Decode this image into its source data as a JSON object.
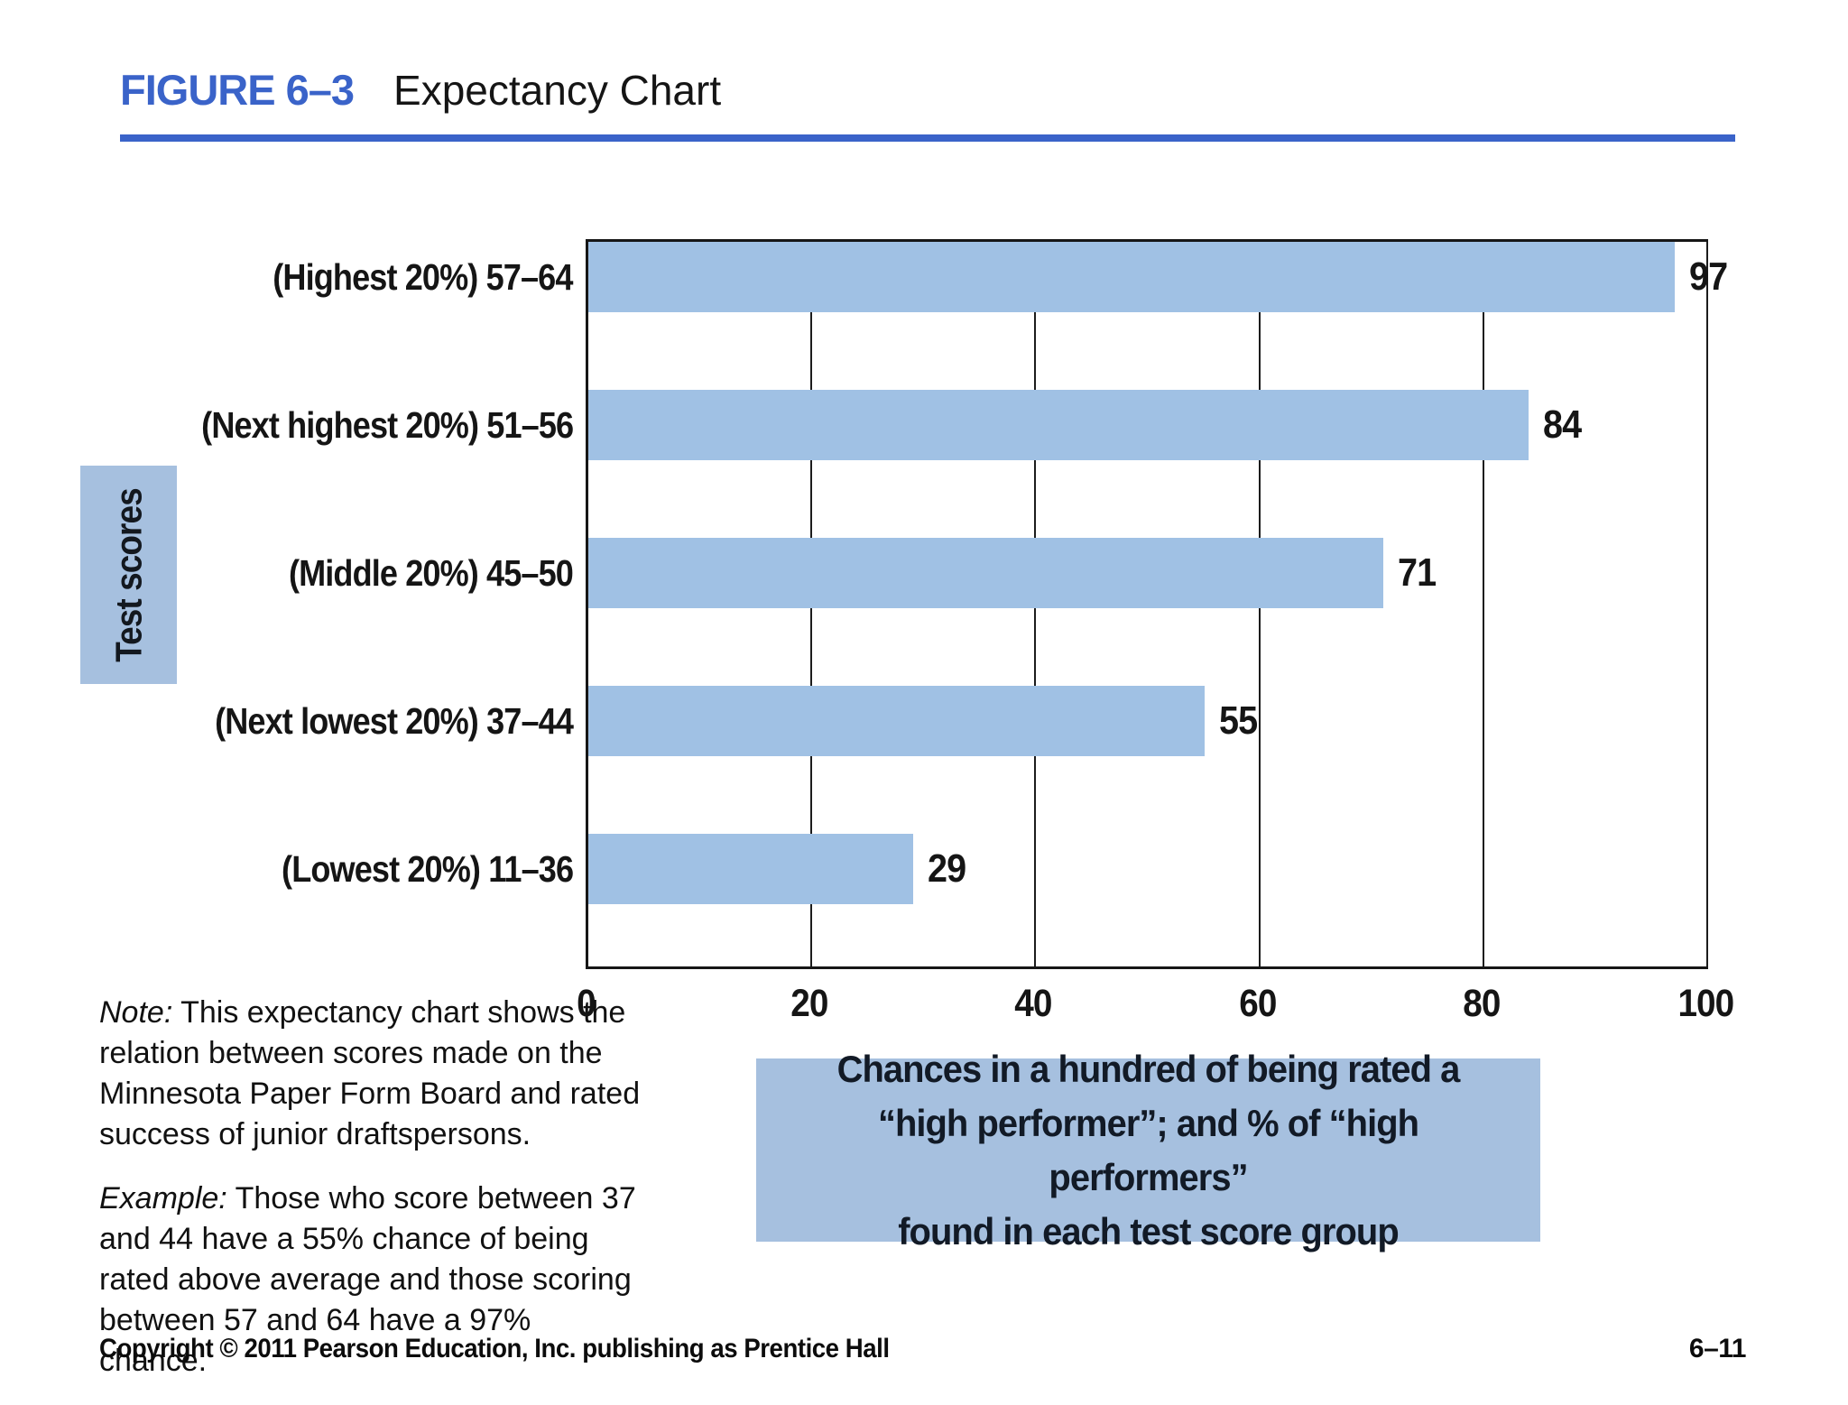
{
  "header": {
    "figure_label": "FIGURE 6–3",
    "title": "Expectancy Chart"
  },
  "chart_data": {
    "type": "bar",
    "orientation": "horizontal",
    "categories": [
      "(Highest 20%) 57–64",
      "(Next highest 20%) 51–56",
      "(Middle 20%) 45–50",
      "(Next lowest 20%) 37–44",
      "(Lowest 20%) 11–36"
    ],
    "values": [
      97,
      84,
      71,
      55,
      29
    ],
    "ylabel": "Test scores",
    "xlabel": "",
    "x_ticks": [
      0,
      20,
      40,
      60,
      80,
      100
    ],
    "xlim": [
      0,
      100
    ],
    "grid": "vertical-lines-on",
    "caption": "Chances in a hundred of being rated a\n“high performer”; and % of “high performers”\nfound in each test score group"
  },
  "note": {
    "lead": "Note:",
    "text": " This expectancy chart shows the\nrelation between scores made on the\nMinnesota Paper Form Board and rated\nsuccess of junior draftspersons."
  },
  "example": {
    "lead": "Example:",
    "text": " Those who score between 37\nand 44 have a 55% chance of being\nrated above average and those scoring\nbetween 57 and 64 have a 97% chance."
  },
  "footer": {
    "copyright": "Copyright © 2011 Pearson Education, Inc. publishing as Prentice Hall",
    "page": "6–11"
  },
  "colors": {
    "accent_blue": "#3A63C9",
    "bar_blue": "#A0C1E4",
    "box_blue": "#A6C0DF"
  }
}
